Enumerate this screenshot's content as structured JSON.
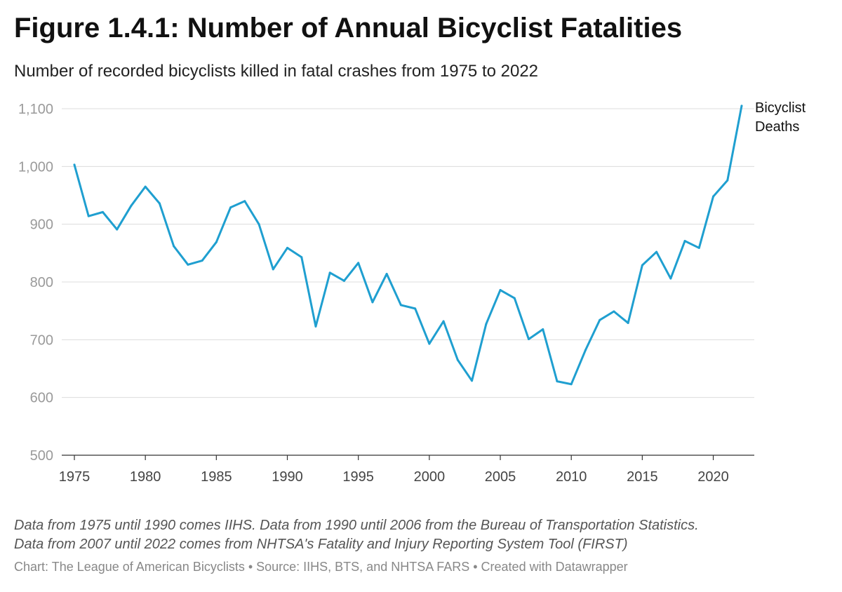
{
  "chart_data": {
    "type": "line",
    "title": "Figure 1.4.1: Number of Annual Bicyclist Fatalities",
    "subtitle": "Number of recorded bicyclists killed in fatal crashes from 1975 to 2022",
    "xlabel": "",
    "ylabel": "",
    "ylim": [
      500,
      1100
    ],
    "xlim": [
      1975,
      2022
    ],
    "y_ticks": [
      500,
      600,
      700,
      800,
      900,
      1000,
      1100
    ],
    "y_tick_labels": [
      "500",
      "600",
      "700",
      "800",
      "900",
      "1,000",
      "1,100"
    ],
    "x_ticks": [
      1975,
      1980,
      1985,
      1990,
      1995,
      2000,
      2005,
      2010,
      2015,
      2020
    ],
    "x_tick_labels": [
      "1975",
      "1980",
      "1985",
      "1990",
      "1995",
      "2000",
      "2005",
      "2010",
      "2015",
      "2020"
    ],
    "grid": "horizontal",
    "line_color": "#1f9fd0",
    "series": [
      {
        "name": "Bicyclist Deaths",
        "label_lines": [
          "Bicyclist",
          "Deaths"
        ],
        "x": [
          1975,
          1976,
          1977,
          1978,
          1979,
          1980,
          1981,
          1982,
          1983,
          1984,
          1985,
          1986,
          1987,
          1988,
          1989,
          1990,
          1991,
          1992,
          1993,
          1994,
          1995,
          1996,
          1997,
          1998,
          1999,
          2000,
          2001,
          2002,
          2003,
          2004,
          2005,
          2006,
          2007,
          2008,
          2009,
          2010,
          2011,
          2012,
          2013,
          2014,
          2015,
          2016,
          2017,
          2018,
          2019,
          2020,
          2021,
          2022
        ],
        "values": [
          1003,
          914,
          921,
          891,
          932,
          965,
          936,
          862,
          830,
          837,
          869,
          929,
          940,
          900,
          822,
          859,
          843,
          723,
          816,
          802,
          833,
          765,
          814,
          760,
          754,
          693,
          732,
          665,
          629,
          727,
          786,
          772,
          701,
          718,
          628,
          623,
          682,
          734,
          749,
          729,
          829,
          852,
          806,
          871,
          859,
          948,
          976,
          1105
        ]
      }
    ]
  },
  "note_lines": [
    "Data from 1975 until 1990 comes IIHS. Data from 1990 until 2006 from the Bureau of Transportation Statistics.",
    "Data from 2007 until 2022 comes from NHTSA's Fatality and Injury Reporting System Tool (FIRST)"
  ],
  "credit": "Chart: The League of American Bicyclists • Source: IIHS, BTS, and NHTSA FARS • Created with Datawrapper"
}
